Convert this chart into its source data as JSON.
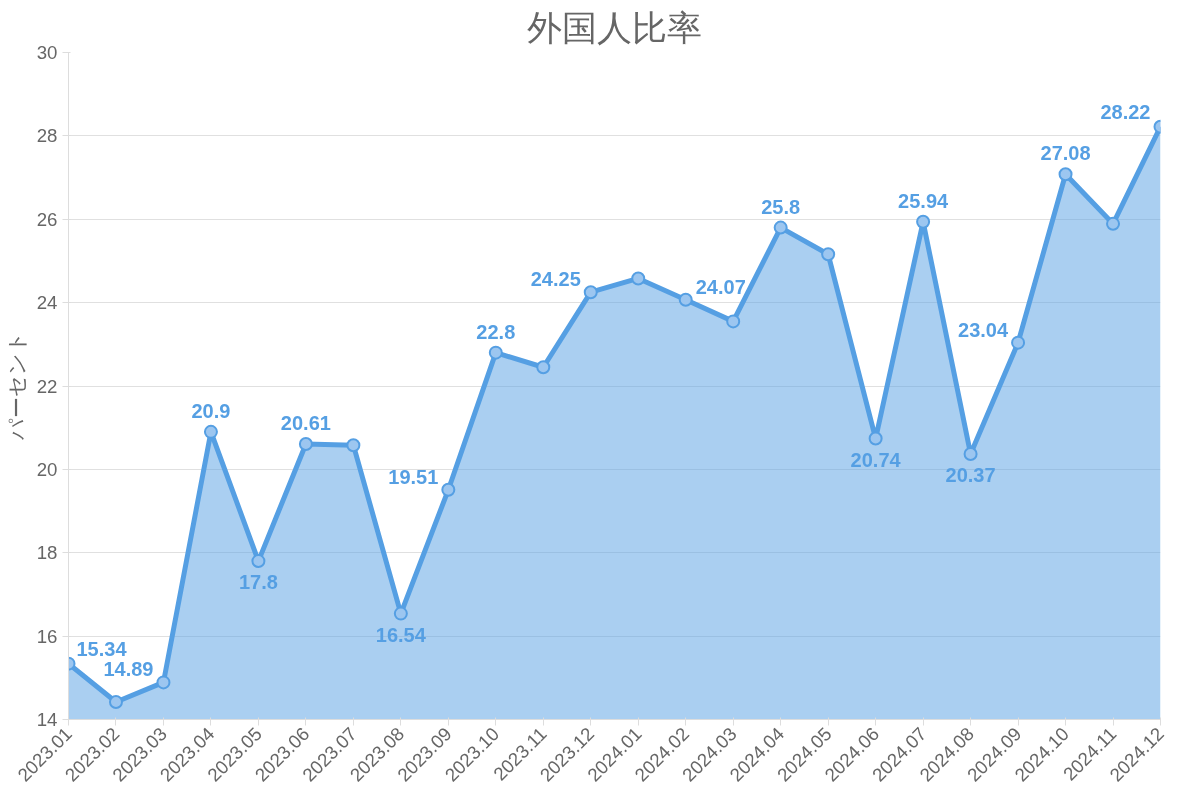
{
  "chart_data": {
    "type": "area",
    "title": "外国人比率",
    "ylabel": "パーセント",
    "categories": [
      "2023.01",
      "2023.02",
      "2023.03",
      "2023.04",
      "2023.05",
      "2023.06",
      "2023.07",
      "2023.08",
      "2023.09",
      "2023.10",
      "2023.11",
      "2023.12",
      "2024.01",
      "2024.02",
      "2024.03",
      "2024.04",
      "2024.05",
      "2024.06",
      "2024.07",
      "2024.08",
      "2024.09",
      "2024.10",
      "2024.11",
      "2024.12"
    ],
    "series": [
      {
        "color": "#559fe3",
        "values": [
          15.34,
          14.42,
          14.89,
          20.9,
          17.8,
          20.61,
          20.58,
          16.54,
          19.51,
          22.8,
          22.45,
          24.25,
          24.58,
          24.07,
          23.55,
          25.8,
          25.16,
          20.74,
          25.94,
          20.37,
          23.04,
          27.08,
          25.89,
          28.22
        ],
        "value_labels": [
          "15.34",
          null,
          "14.89",
          "20.9",
          "17.8",
          "20.61",
          null,
          "16.54",
          "19.51",
          "22.8",
          null,
          "24.25",
          null,
          "24.07",
          null,
          "25.8",
          null,
          "20.74",
          "25.94",
          "20.37",
          "23.04",
          "27.08",
          null,
          "28.22"
        ]
      }
    ],
    "ylim": [
      14,
      30
    ],
    "yticks": [
      14,
      16,
      18,
      20,
      22,
      24,
      26,
      28,
      30
    ],
    "grid": "y",
    "marker": "circle",
    "line_style": "solid"
  }
}
